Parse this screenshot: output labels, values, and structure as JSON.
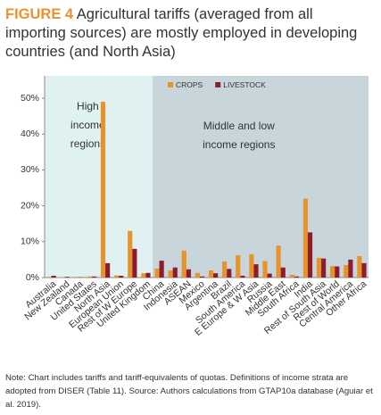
{
  "chart_data": {
    "type": "bar",
    "figure_label": "FIGURE 4",
    "title": "Agricultural tariffs (averaged from all importing sources) are mostly employed in developing countries (and North Asia)",
    "categories": [
      "Australia",
      "New Zealand",
      "Canada",
      "United States",
      "North Asia",
      "European Union",
      "Rest of W Europe",
      "United Kingdom",
      "China",
      "Indonesia",
      "ASEAN",
      "Mexico",
      "Argentina",
      "Brazil",
      "South America",
      "E Europe & W Asia",
      "Russia",
      "Middle East",
      "South Africa",
      "India",
      "Rest of South Asia",
      "Rest of World",
      "Central America",
      "Other Africa"
    ],
    "series": [
      {
        "name": "CROPS",
        "color": "#e8922c",
        "values": [
          0.2,
          0.1,
          0.2,
          0.3,
          49,
          0.6,
          13,
          1.2,
          2.5,
          2,
          7.5,
          1.3,
          2,
          4.5,
          6.2,
          6.5,
          4.6,
          8.9,
          0.8,
          22,
          5.5,
          3.2,
          3.5,
          6
        ]
      },
      {
        "name": "LIVESTOCK",
        "color": "#8c1d2e",
        "values": [
          0.5,
          0.2,
          0.1,
          0.3,
          4,
          0.5,
          8,
          1.3,
          4.7,
          2.8,
          2.3,
          0.3,
          1.2,
          2.4,
          0.5,
          3.7,
          1.1,
          2.8,
          0.3,
          12.6,
          5.3,
          3.1,
          5,
          4
        ]
      }
    ],
    "ylim": [
      0,
      50
    ],
    "yticks": [
      {
        "value": 0,
        "label": "0%"
      },
      {
        "value": 10,
        "label": "10%"
      },
      {
        "value": 20,
        "label": "20%"
      },
      {
        "value": 30,
        "label": "30%"
      },
      {
        "value": 40,
        "label": "40%"
      },
      {
        "value": 50,
        "label": "50%"
      }
    ],
    "regions": [
      {
        "lines": [
          "High",
          "income",
          "regions"
        ],
        "count": 8,
        "color": "#dff1f1"
      },
      {
        "lines": [
          "Middle and low",
          "income regions"
        ],
        "count": 16,
        "color": "#c8d6db"
      }
    ],
    "note": "Note: Chart includes tariffs and tariff-equivalents of quotas. Definitions of income strata are adopted from DISER (Table 11). Source: Authors calculations from GTAP10a database (Aguiar et al. 2019)."
  }
}
